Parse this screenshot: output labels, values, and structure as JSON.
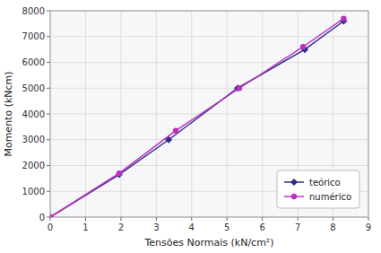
{
  "chart_data": {
    "type": "line",
    "xlabel": "Tensões Normais (kN/cm²)",
    "ylabel": "Momento (kNcm)",
    "xlim": [
      0,
      9
    ],
    "ylim": [
      0,
      8000
    ],
    "xticks": [
      0,
      1,
      2,
      3,
      4,
      5,
      6,
      7,
      8,
      9
    ],
    "yticks": [
      0,
      1000,
      2000,
      3000,
      4000,
      5000,
      6000,
      7000,
      8000
    ],
    "grid": true,
    "legend": "lower right",
    "series": [
      {
        "name": "teórico",
        "color": "#2e2e8a",
        "marker": "diamond",
        "x": [
          0,
          1.95,
          3.35,
          5.3,
          7.2,
          8.3
        ],
        "values": [
          0,
          1650,
          3000,
          5000,
          6500,
          7600
        ]
      },
      {
        "name": "numérico",
        "color": "#c030c0",
        "marker": "circle",
        "x": [
          0,
          1.95,
          3.55,
          5.35,
          7.15,
          8.3
        ],
        "values": [
          0,
          1700,
          3350,
          5000,
          6600,
          7700
        ]
      }
    ]
  }
}
